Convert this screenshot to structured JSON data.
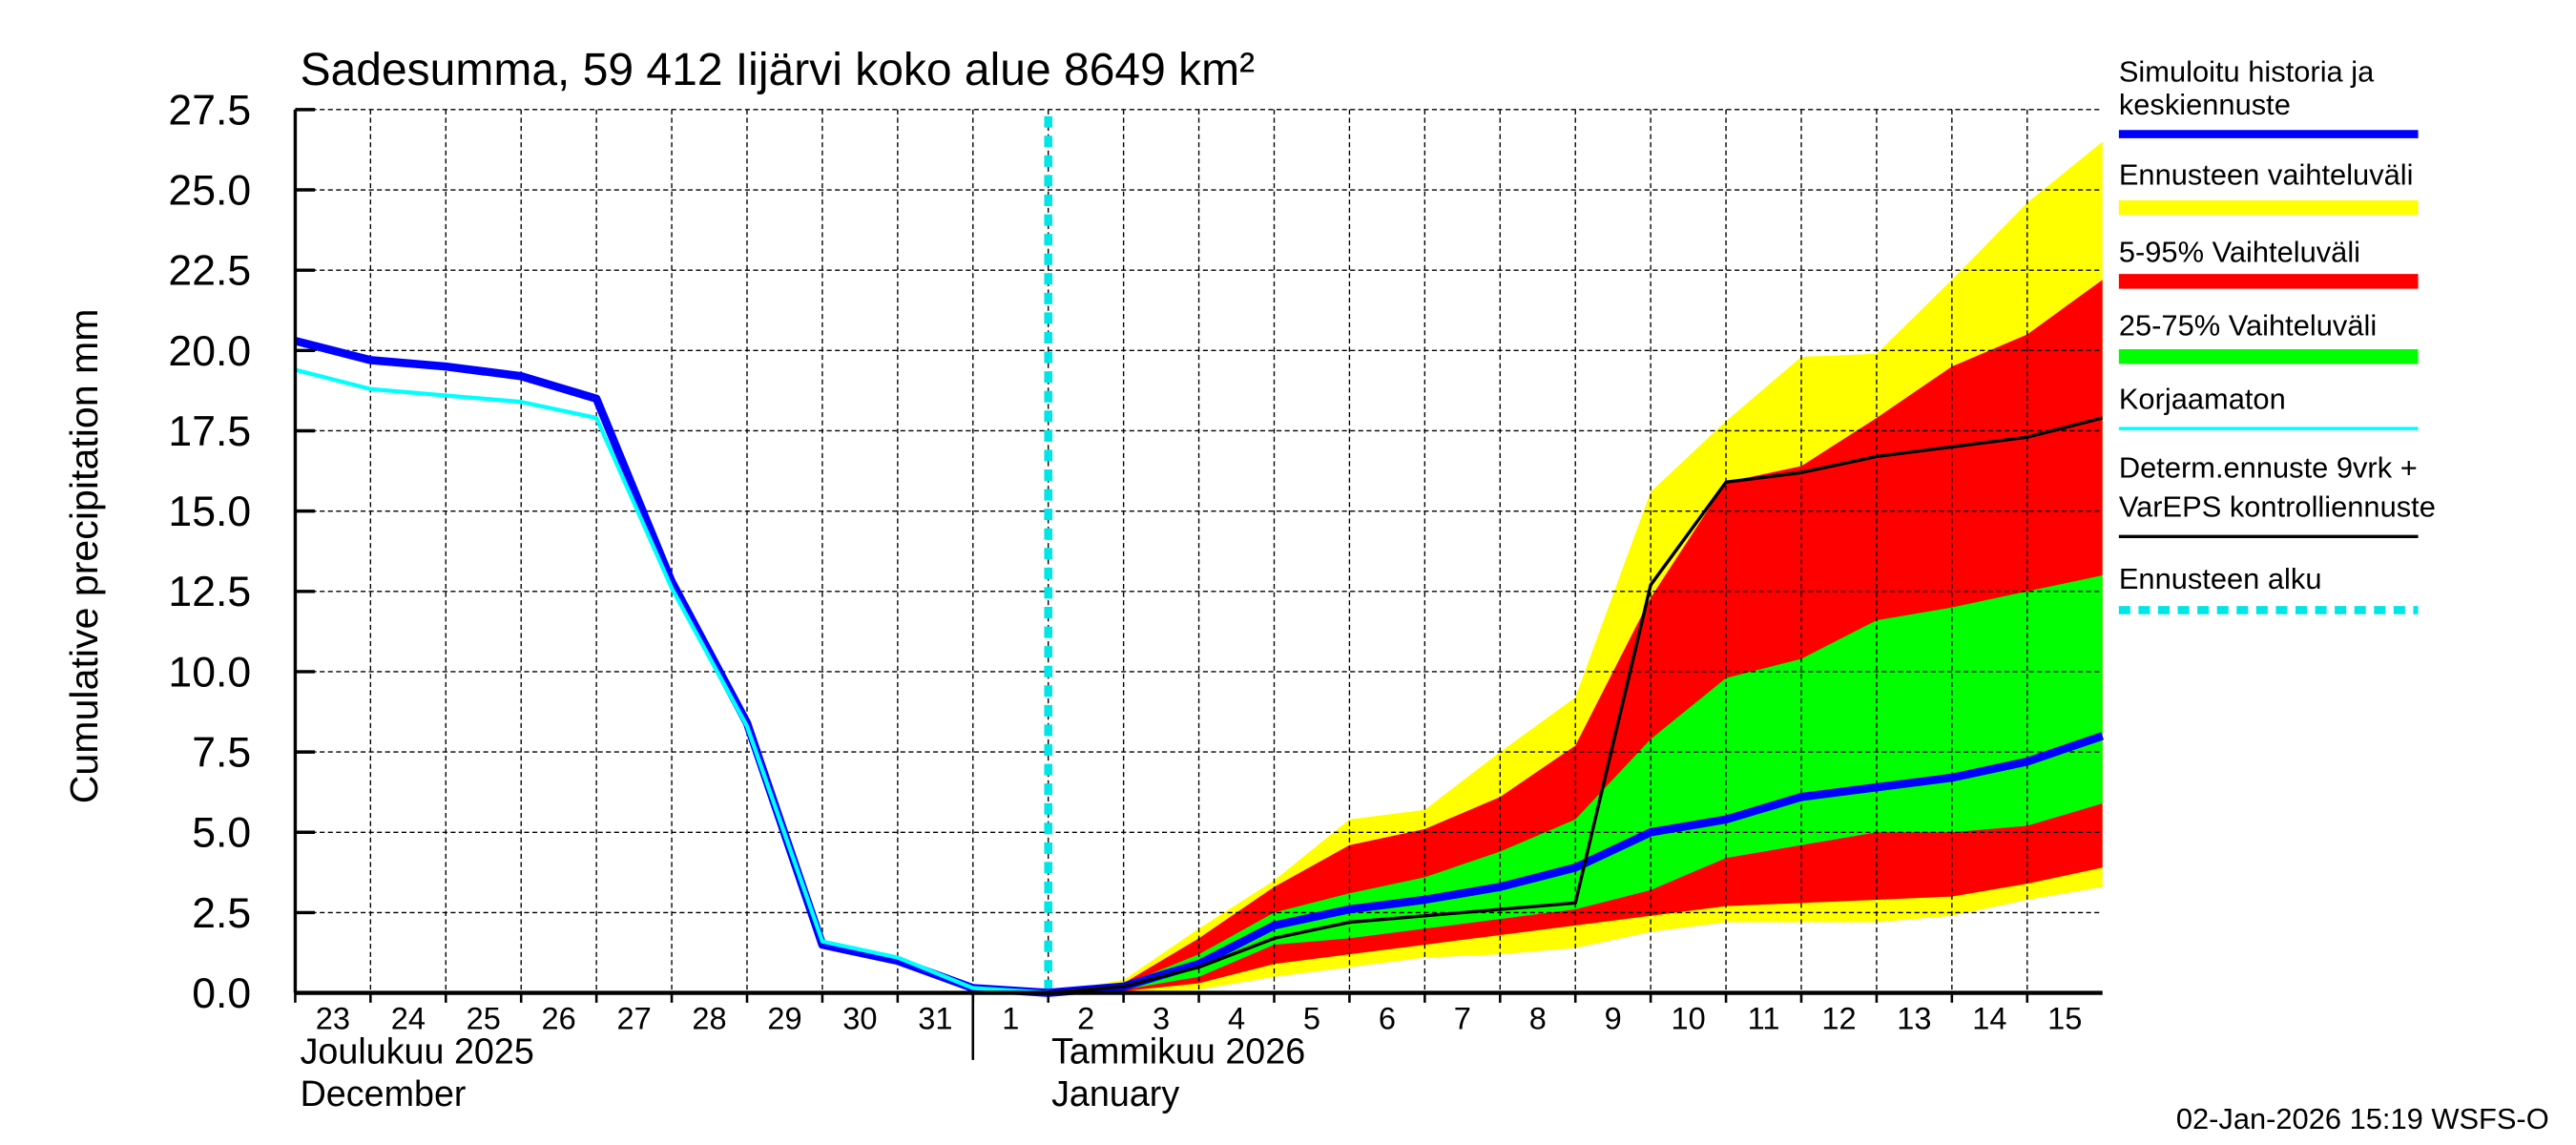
{
  "chart_data": {
    "type": "area",
    "title": "Sadesumma, 59 412 Iijärvi koko alue 8649 km²",
    "ylabel": "Cumulative precipitation   mm",
    "ylim": [
      0,
      27.5
    ],
    "yticks": [
      "0.0",
      "2.5",
      "5.0",
      "7.5",
      "10.0",
      "12.5",
      "15.0",
      "17.5",
      "20.0",
      "22.5",
      "25.0",
      "27.5"
    ],
    "xlim": [
      "2025-12-23",
      "2026-01-16"
    ],
    "x_day_labels": [
      "23",
      "24",
      "25",
      "26",
      "27",
      "28",
      "29",
      "30",
      "31",
      "1",
      "2",
      "3",
      "4",
      "5",
      "6",
      "7",
      "8",
      "9",
      "10",
      "11",
      "12",
      "13",
      "14",
      "15"
    ],
    "month_labels": [
      {
        "fi": "Joulukuu  2025",
        "en": "December"
      },
      {
        "fi": "Tammikuu  2026",
        "en": "January"
      }
    ],
    "grid": true,
    "forecast_start": "2026-01-02",
    "history_dates": [
      "2025-12-23",
      "2025-12-24",
      "2025-12-25",
      "2025-12-26",
      "2025-12-27",
      "2025-12-28",
      "2025-12-29",
      "2025-12-30",
      "2025-12-31",
      "2026-01-01",
      "2026-01-02"
    ],
    "forecast_dates": [
      "2026-01-02",
      "2026-01-03",
      "2026-01-04",
      "2026-01-05",
      "2026-01-06",
      "2026-01-07",
      "2026-01-08",
      "2026-01-09",
      "2026-01-10",
      "2026-01-11",
      "2026-01-12",
      "2026-01-13",
      "2026-01-14",
      "2026-01-15",
      "2026-01-16"
    ],
    "series": [
      {
        "name": "Simuloitu historia ja keskiennuste",
        "color": "#0000ff",
        "part": "history",
        "values": [
          20.3,
          19.7,
          19.5,
          19.2,
          18.5,
          12.8,
          8.4,
          1.5,
          1.0,
          0.15,
          0.0
        ]
      },
      {
        "name": "Korjaamaton",
        "color": "#00ffff",
        "part": "history",
        "values": [
          19.4,
          18.8,
          18.6,
          18.4,
          17.9,
          12.6,
          8.3,
          1.6,
          1.1,
          0.15,
          0.0
        ]
      },
      {
        "name": "Simuloitu historia ja keskiennuste",
        "color": "#0000ff",
        "part": "forecast",
        "values": [
          0,
          0.2,
          0.9,
          2.1,
          2.6,
          2.9,
          3.3,
          3.9,
          5.0,
          5.4,
          6.1,
          6.4,
          6.7,
          7.2,
          8.0
        ]
      },
      {
        "name": "Determ.ennuste 9vrk + VarEPS kontrolliennuste",
        "color": "#000000",
        "part": "forecast",
        "values": [
          0,
          0.2,
          0.8,
          1.7,
          2.2,
          2.4,
          2.6,
          2.8,
          12.7,
          15.9,
          16.2,
          16.7,
          17.0,
          17.3,
          17.9
        ]
      }
    ],
    "bands": [
      {
        "name": "Ennusteen vaihteluväli",
        "color": "#ffff00",
        "upper": [
          0,
          0.4,
          2.0,
          3.5,
          5.4,
          5.7,
          7.5,
          9.2,
          15.6,
          17.8,
          19.8,
          19.9,
          22.2,
          24.6,
          26.5
        ],
        "lower": [
          0,
          0,
          0.1,
          0.5,
          0.8,
          1.1,
          1.2,
          1.4,
          1.9,
          2.2,
          2.2,
          2.2,
          2.4,
          2.9,
          3.3
        ]
      },
      {
        "name": "5-95% Vaihteluväli",
        "color": "#ff0000",
        "upper": [
          0,
          0.3,
          1.7,
          3.3,
          4.6,
          5.1,
          6.1,
          7.7,
          12.3,
          15.9,
          16.4,
          17.9,
          19.5,
          20.5,
          22.2
        ],
        "lower": [
          0,
          0.05,
          0.3,
          0.9,
          1.2,
          1.5,
          1.8,
          2.1,
          2.4,
          2.7,
          2.8,
          2.9,
          3.0,
          3.4,
          3.9
        ]
      },
      {
        "name": "25-75% Vaihteluväli",
        "color": "#00ff00",
        "upper": [
          0,
          0.25,
          1.2,
          2.5,
          3.1,
          3.6,
          4.4,
          5.4,
          7.9,
          9.8,
          10.4,
          11.6,
          12.0,
          12.5,
          13.0
        ],
        "lower": [
          0,
          0.1,
          0.5,
          1.5,
          1.7,
          2.0,
          2.3,
          2.6,
          3.2,
          4.2,
          4.6,
          5.0,
          5.0,
          5.2,
          5.9
        ]
      }
    ],
    "legend": {
      "placement": "right",
      "items": [
        {
          "lines": [
            "Simuloitu historia ja",
            "keskiennuste"
          ],
          "color": "#0000ff",
          "style": "thick"
        },
        {
          "lines": [
            "Ennusteen vaihteluväli"
          ],
          "color": "#ffff00",
          "style": "band"
        },
        {
          "lines": [
            "5-95% Vaihteluväli"
          ],
          "color": "#ff0000",
          "style": "band"
        },
        {
          "lines": [
            "25-75% Vaihteluväli"
          ],
          "color": "#00ff00",
          "style": "band"
        },
        {
          "lines": [
            "Korjaamaton"
          ],
          "color": "#00ffff",
          "style": "thin"
        },
        {
          "lines": [
            "Determ.ennuste 9vrk +",
            "VarEPS kontrolliennuste"
          ],
          "color": "#000000",
          "style": "thin"
        },
        {
          "lines": [
            "Ennusteen alku"
          ],
          "color": "#00e5e5",
          "style": "dashed"
        }
      ]
    },
    "footer": "02-Jan-2026 15:19 WSFS-O"
  }
}
